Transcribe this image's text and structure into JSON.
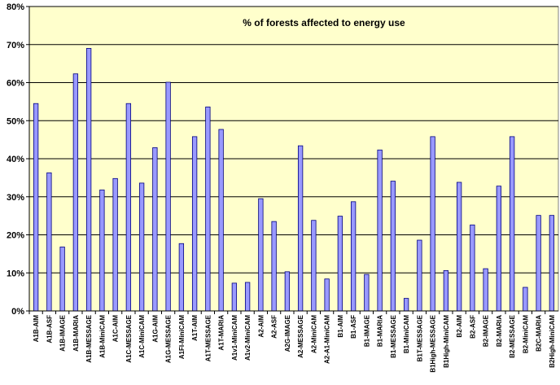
{
  "chart_data": {
    "type": "bar",
    "title": "% of forests affected to energy use",
    "xlabel": "",
    "ylabel": "",
    "ylim": [
      0,
      80
    ],
    "yticks": [
      "0%",
      "10%",
      "20%",
      "30%",
      "40%",
      "50%",
      "60%",
      "70%",
      "80%"
    ],
    "grid": true,
    "legend": "none",
    "categories": [
      "A1B-AIM",
      "A1B-ASF",
      "A1B-IMAGE",
      "A1B-MARIA",
      "A1B-MESSAGE",
      "A1B-MiniCAM",
      "A1C-AIM",
      "A1C-MESSAGE",
      "A1C-MiniCAM",
      "A1G-AIM",
      "A1G-MESSAGE",
      "A1FI-MiniCAM",
      "A1T-AIM",
      "A1T-MESSAGE",
      "A1T-MARIA",
      "A1v1-MiniCAM",
      "A1v2-MiniCAM",
      "A2-AIM",
      "A2-ASF",
      "A2G-IMAGE",
      "A2-MESSAGE",
      "A2-MiniCAM",
      "A2-A1-MiniCAM",
      "B1-AIM",
      "B1-ASF",
      "B1-IMAGE",
      "B1-MARIA",
      "B1-MESSAGE",
      "B1-MiniCAM",
      "B1T-MESSAGE",
      "B1High-MESSAGE",
      "B1High-MiniCAM",
      "B2-AIM",
      "B2-ASF",
      "B2-IMAGE",
      "B2-MARIA",
      "B2-MESSAGE",
      "B2-MiniCAM",
      "B2C-MARIA",
      "B2High-MiniCAM"
    ],
    "values": [
      54.5,
      36.3,
      16.8,
      62.3,
      69.0,
      31.8,
      34.8,
      54.5,
      33.6,
      42.9,
      60.1,
      17.7,
      45.8,
      53.6,
      47.7,
      7.3,
      7.5,
      29.5,
      23.5,
      10.3,
      43.4,
      23.8,
      8.4,
      24.9,
      28.7,
      9.6,
      42.3,
      34.1,
      3.3,
      18.6,
      45.8,
      10.6,
      33.8,
      22.6,
      11.1,
      32.8,
      45.8,
      6.2,
      25.1,
      25.1
    ],
    "colors": {
      "plot_background": "#ffffcc",
      "bar_fill": "#9999ff",
      "bar_stroke": "#000080"
    }
  }
}
